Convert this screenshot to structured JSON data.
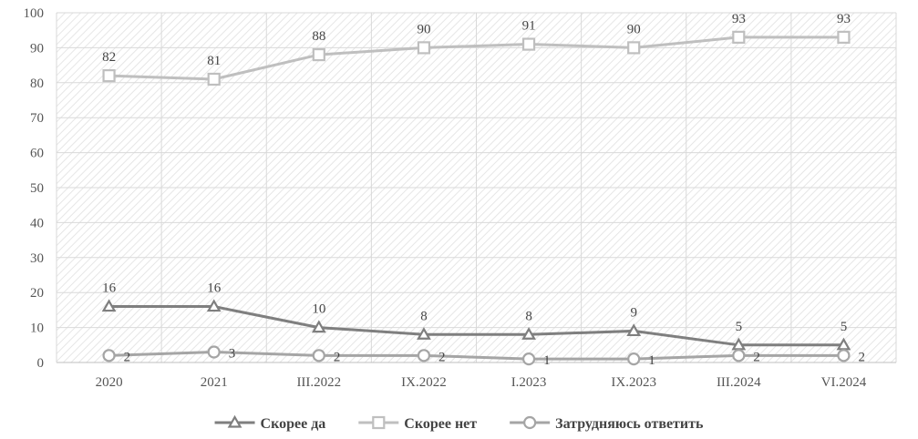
{
  "chart_data": {
    "type": "line",
    "title": "",
    "xlabel": "",
    "ylabel": "",
    "categories": [
      "2020",
      "2021",
      "III.2022",
      "IX.2022",
      "I.2023",
      "IX.2023",
      "III.2024",
      "VI.2024"
    ],
    "ylim": [
      0,
      100
    ],
    "yticks": [
      "0",
      "10",
      "20",
      "30",
      "40",
      "50",
      "60",
      "70",
      "80",
      "90",
      "100"
    ],
    "grid": true,
    "legend_position": "bottom",
    "series": [
      {
        "name": "Скорее да",
        "values": [
          16,
          16,
          10,
          8,
          8,
          9,
          5,
          5
        ],
        "marker": "triangle",
        "color": "#7f7f7f"
      },
      {
        "name": "Скорее нет",
        "values": [
          82,
          81,
          88,
          90,
          91,
          90,
          93,
          93
        ],
        "marker": "square",
        "color": "#bfbfbf"
      },
      {
        "name": "Затрудняюсь ответить",
        "values": [
          2,
          3,
          2,
          2,
          1,
          1,
          2,
          2
        ],
        "marker": "circle",
        "color": "#a5a5a5"
      }
    ]
  }
}
